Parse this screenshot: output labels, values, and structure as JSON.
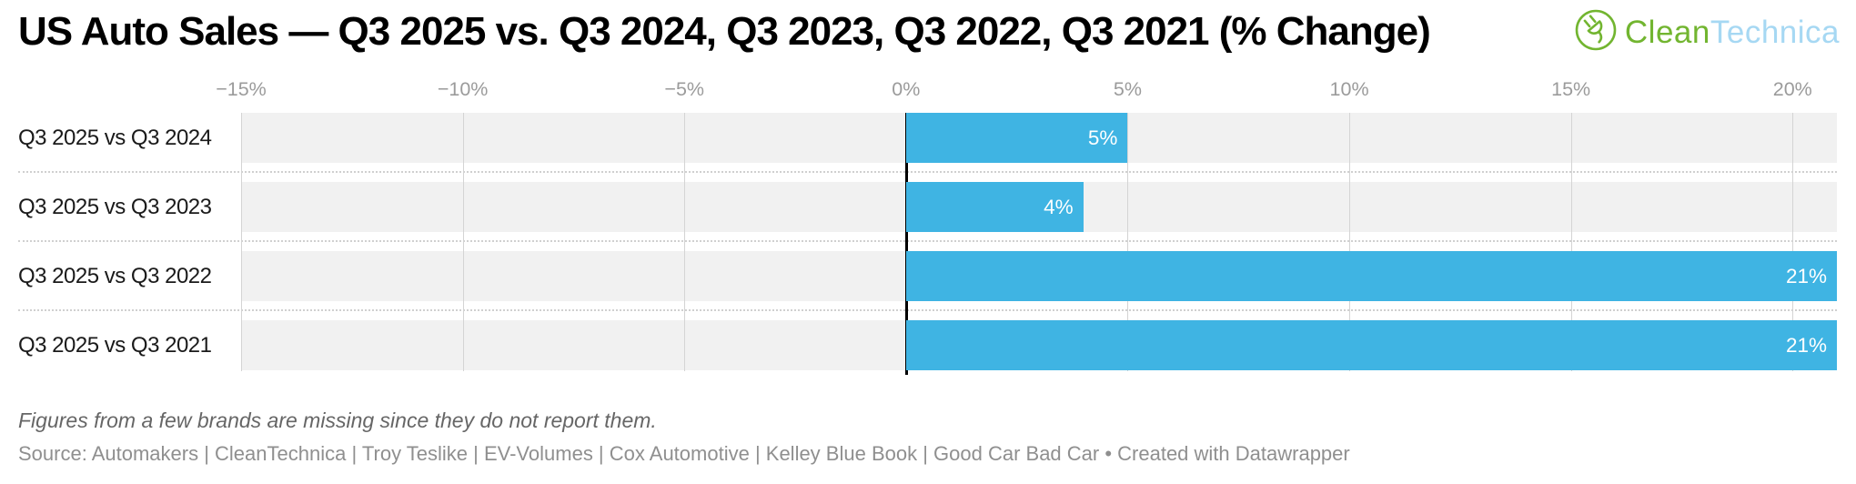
{
  "title": "US Auto Sales — Q3 2025 vs. Q3 2024, Q3 2023, Q3 2022, Q3 2021 (% Change)",
  "logo": {
    "text_primary": "Clean",
    "text_secondary": "Technica",
    "color_primary": "#72b530",
    "color_secondary": "#a6d8f3"
  },
  "chart_data": {
    "type": "bar",
    "orientation": "horizontal",
    "title": "US Auto Sales — Q3 2025 vs. Q3 2024, Q3 2023, Q3 2022, Q3 2021 (% Change)",
    "categories": [
      "Q3 2025 vs Q3 2024",
      "Q3 2025 vs Q3 2023",
      "Q3 2025 vs Q3 2022",
      "Q3 2025 vs Q3 2021"
    ],
    "values": [
      5,
      4,
      21,
      21
    ],
    "value_labels": [
      "5%",
      "4%",
      "21%",
      "21%"
    ],
    "unit": "%",
    "xlabel": "",
    "ylabel": "",
    "xlim": [
      -15,
      21
    ],
    "x_ticks": [
      -15,
      -10,
      -5,
      0,
      5,
      10,
      15,
      20
    ],
    "x_tick_labels": [
      "−15%",
      "−10%",
      "−5%",
      "0%",
      "5%",
      "10%",
      "15%",
      "20%"
    ],
    "grid": true,
    "legend": false,
    "bar_color": "#3fb4e3",
    "row_background_color": "#f1f1f1",
    "zero_line_color": "#000000"
  },
  "notes": {
    "annotation": "Figures from a few brands are missing since they do not report them.",
    "source": "Source: Automakers | CleanTechnica | Troy Teslike | EV-Volumes | Cox Automotive | Kelley Blue Book | Good Car Bad Car • Created with Datawrapper"
  }
}
